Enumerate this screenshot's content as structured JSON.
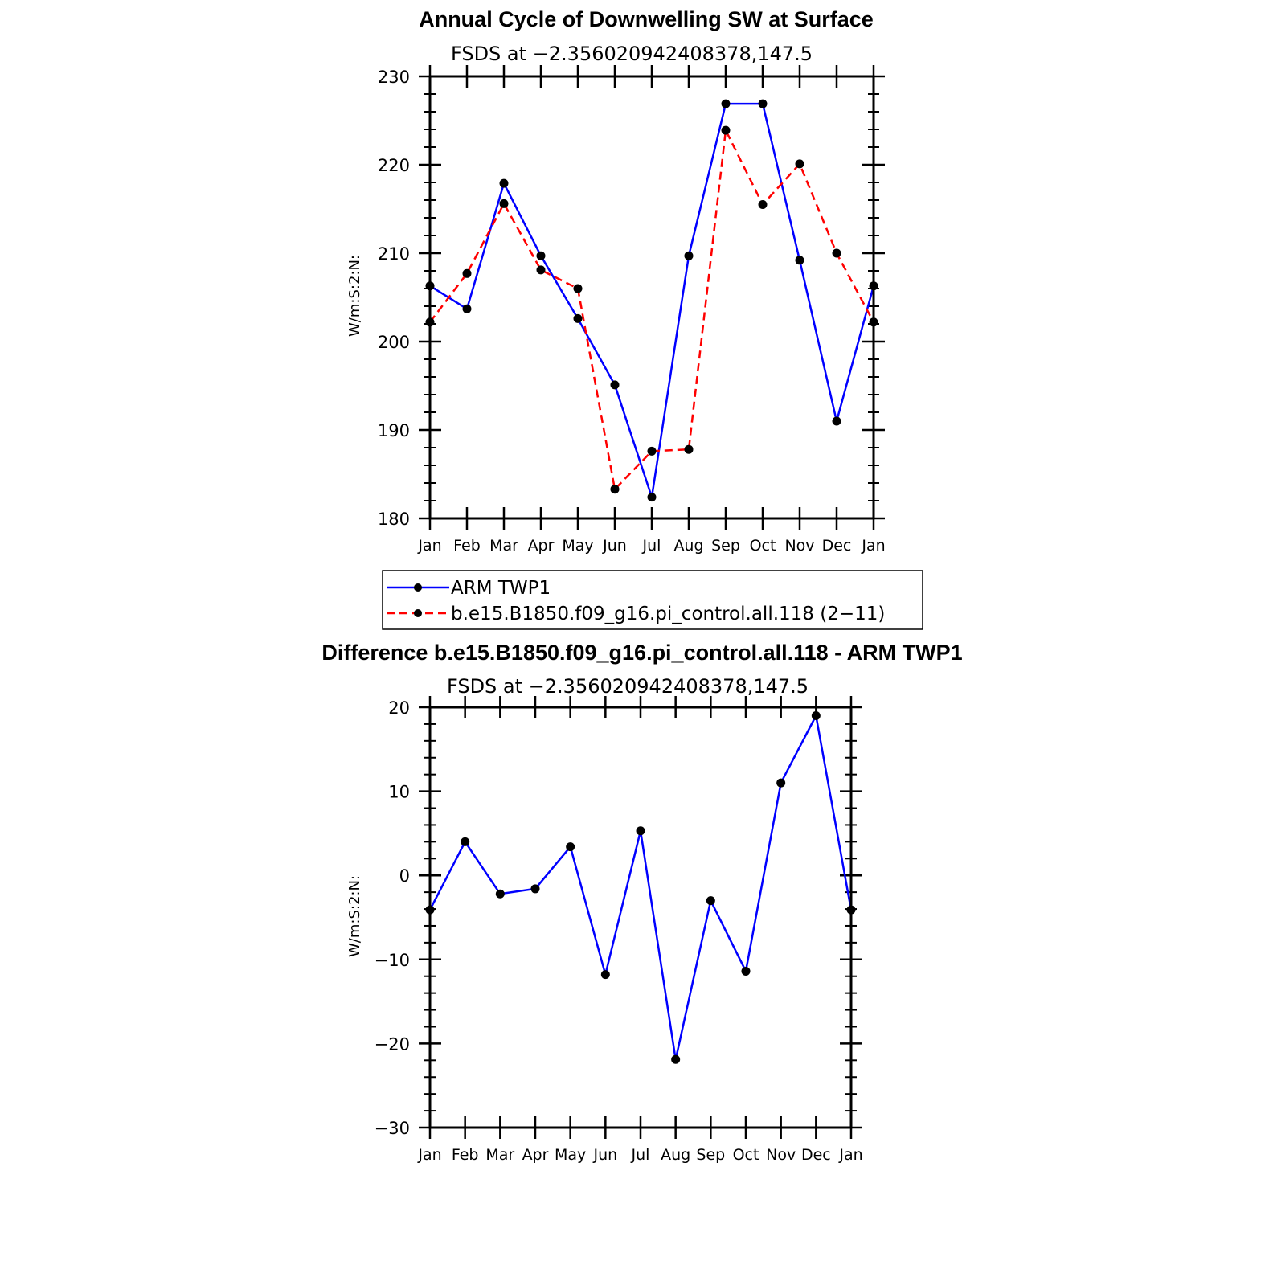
{
  "chart_data": [
    {
      "type": "line",
      "title": "Annual Cycle of Downwelling SW at Surface",
      "subtitle": "FSDS at −2.356020942408378,147.5",
      "ylabel": "W/m:S:2:N:",
      "xlabel": "",
      "ylim": [
        180,
        230
      ],
      "yticks": [
        "180",
        "190",
        "200",
        "210",
        "220",
        "230"
      ],
      "categories": [
        "Jan",
        "Feb",
        "Mar",
        "Apr",
        "May",
        "Jun",
        "Jul",
        "Aug",
        "Sep",
        "Oct",
        "Nov",
        "Dec",
        "Jan"
      ],
      "series": [
        {
          "name": "ARM TWP1",
          "color": "#0000ff",
          "dash": "solid",
          "values": [
            206.3,
            203.7,
            217.9,
            209.7,
            202.6,
            195.1,
            182.4,
            209.7,
            226.9,
            226.9,
            209.2,
            191.0,
            206.3
          ]
        },
        {
          "name": "b.e15.B1850.f09_g16.pi_control.all.118 (2−11)",
          "color": "#ff0000",
          "dash": "dashed",
          "values": [
            202.2,
            207.7,
            215.6,
            208.1,
            206.0,
            183.3,
            187.6,
            187.8,
            223.9,
            215.5,
            220.1,
            210.0,
            202.2
          ]
        }
      ],
      "legend": "below"
    },
    {
      "type": "line",
      "title": "Difference b.e15.B1850.f09_g16.pi_control.all.118 - ARM TWP1",
      "subtitle": "FSDS at −2.356020942408378,147.5",
      "ylabel": "W/m:S:2:N:",
      "xlabel": "",
      "ylim": [
        -30,
        20
      ],
      "yticks": [
        "−30",
        "−20",
        "−10",
        "0",
        "10",
        "20"
      ],
      "categories": [
        "Jan",
        "Feb",
        "Mar",
        "Apr",
        "May",
        "Jun",
        "Jul",
        "Aug",
        "Sep",
        "Oct",
        "Nov",
        "Dec",
        "Jan"
      ],
      "series": [
        {
          "color": "#0000ff",
          "dash": "solid",
          "values": [
            -4.1,
            4.0,
            -2.2,
            -1.6,
            3.4,
            -11.8,
            5.3,
            -21.9,
            -3.0,
            -11.4,
            11.0,
            19.0,
            -4.1
          ]
        }
      ]
    }
  ]
}
